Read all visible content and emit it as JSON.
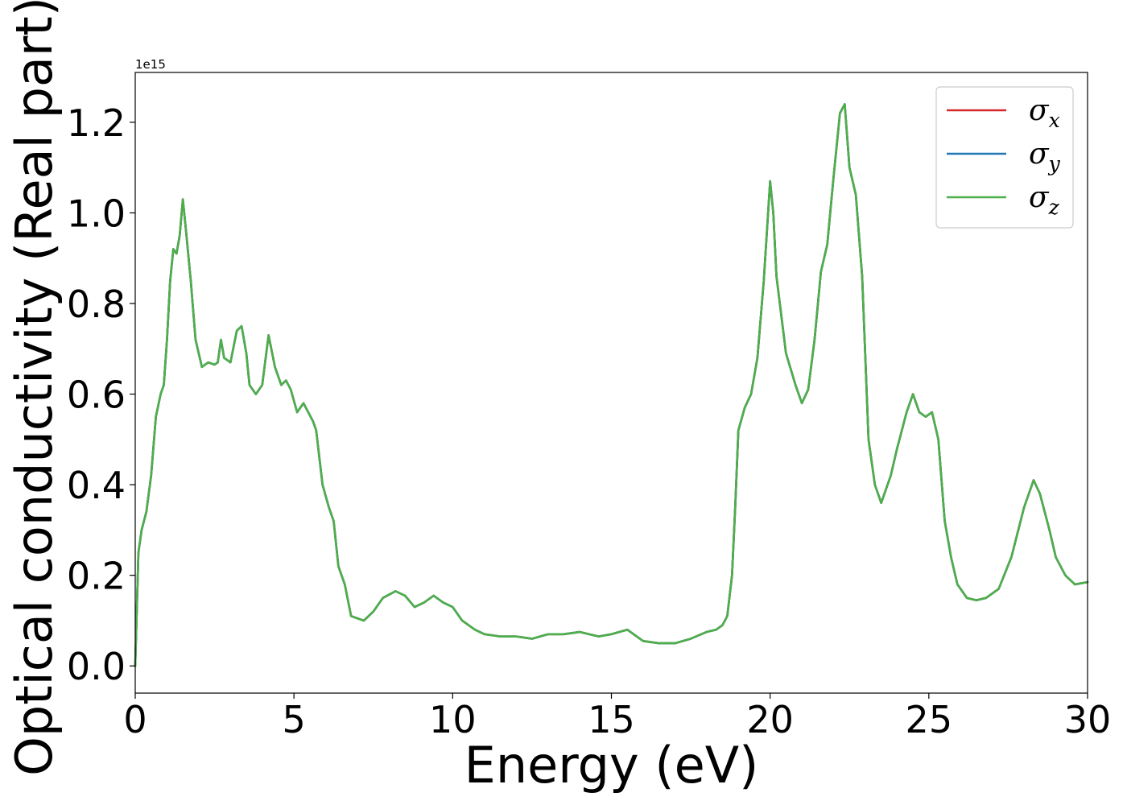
{
  "chart_data": {
    "type": "line",
    "xlabel": "Energy (eV)",
    "ylabel": "Optical conductivity (Real part)",
    "y_offset_text": "1e15",
    "y_scale_exponent": 15,
    "xlim": [
      0,
      30
    ],
    "ylim": [
      -0.06,
      1.31
    ],
    "x_ticks": [
      0,
      5,
      10,
      15,
      20,
      25,
      30
    ],
    "x_tick_labels": [
      "0",
      "5",
      "10",
      "15",
      "20",
      "25",
      "30"
    ],
    "y_ticks": [
      0.0,
      0.2,
      0.4,
      0.6,
      0.8,
      1.0,
      1.2
    ],
    "y_tick_labels": [
      "0.0",
      "0.2",
      "0.4",
      "0.6",
      "0.8",
      "1.0",
      "1.2"
    ],
    "grid": false,
    "legend_position": "top-right",
    "series": [
      {
        "name": "σx",
        "symbol": "σ",
        "subscript": "x",
        "color": "#d62728"
      },
      {
        "name": "σy",
        "symbol": "σ",
        "subscript": "y",
        "color": "#1f77b4"
      },
      {
        "name": "σz",
        "symbol": "σ",
        "subscript": "z",
        "color": "#4daf4a"
      }
    ],
    "x": [
      0,
      0.1,
      0.2,
      0.35,
      0.5,
      0.65,
      0.8,
      0.9,
      1.0,
      1.1,
      1.2,
      1.3,
      1.4,
      1.5,
      1.6,
      1.75,
      1.9,
      2.1,
      2.3,
      2.5,
      2.6,
      2.7,
      2.8,
      3.0,
      3.2,
      3.35,
      3.5,
      3.6,
      3.8,
      4.0,
      4.2,
      4.4,
      4.6,
      4.75,
      4.9,
      5.1,
      5.3,
      5.45,
      5.6,
      5.7,
      5.9,
      6.1,
      6.25,
      6.4,
      6.6,
      6.8,
      7.0,
      7.2,
      7.5,
      7.8,
      8.2,
      8.5,
      8.8,
      9.1,
      9.4,
      9.7,
      10.0,
      10.3,
      10.5,
      10.7,
      11.0,
      11.5,
      12.0,
      12.5,
      13.0,
      13.5,
      14.0,
      14.3,
      14.6,
      15.0,
      15.5,
      16.0,
      16.5,
      17.0,
      17.5,
      18.0,
      18.3,
      18.5,
      18.65,
      18.8,
      18.9,
      19.0,
      19.2,
      19.4,
      19.6,
      19.8,
      20.0,
      20.1,
      20.2,
      20.5,
      20.8,
      21.0,
      21.2,
      21.4,
      21.6,
      21.8,
      22.0,
      22.2,
      22.35,
      22.5,
      22.7,
      22.9,
      23.1,
      23.3,
      23.5,
      23.8,
      24.0,
      24.3,
      24.5,
      24.7,
      24.9,
      25.1,
      25.3,
      25.5,
      25.7,
      25.9,
      26.2,
      26.5,
      26.8,
      27.2,
      27.6,
      28.0,
      28.3,
      28.5,
      28.8,
      29.0,
      29.3,
      29.6,
      30.0
    ],
    "values": [
      0.0,
      0.25,
      0.3,
      0.34,
      0.42,
      0.55,
      0.6,
      0.62,
      0.72,
      0.85,
      0.92,
      0.91,
      0.95,
      1.03,
      0.96,
      0.85,
      0.72,
      0.66,
      0.67,
      0.665,
      0.67,
      0.72,
      0.68,
      0.67,
      0.74,
      0.75,
      0.69,
      0.62,
      0.6,
      0.62,
      0.73,
      0.66,
      0.62,
      0.63,
      0.61,
      0.56,
      0.58,
      0.56,
      0.54,
      0.52,
      0.4,
      0.35,
      0.32,
      0.22,
      0.18,
      0.11,
      0.105,
      0.1,
      0.12,
      0.15,
      0.165,
      0.155,
      0.13,
      0.14,
      0.155,
      0.14,
      0.13,
      0.1,
      0.09,
      0.08,
      0.07,
      0.065,
      0.065,
      0.06,
      0.07,
      0.07,
      0.075,
      0.07,
      0.065,
      0.07,
      0.08,
      0.055,
      0.05,
      0.05,
      0.06,
      0.075,
      0.08,
      0.09,
      0.11,
      0.2,
      0.35,
      0.52,
      0.57,
      0.6,
      0.68,
      0.85,
      1.07,
      1.0,
      0.86,
      0.69,
      0.62,
      0.58,
      0.61,
      0.72,
      0.87,
      0.93,
      1.08,
      1.22,
      1.24,
      1.1,
      1.04,
      0.86,
      0.5,
      0.4,
      0.36,
      0.42,
      0.48,
      0.56,
      0.6,
      0.56,
      0.55,
      0.56,
      0.5,
      0.32,
      0.24,
      0.18,
      0.15,
      0.145,
      0.15,
      0.17,
      0.24,
      0.35,
      0.41,
      0.38,
      0.3,
      0.24,
      0.2,
      0.18,
      0.185
    ]
  }
}
